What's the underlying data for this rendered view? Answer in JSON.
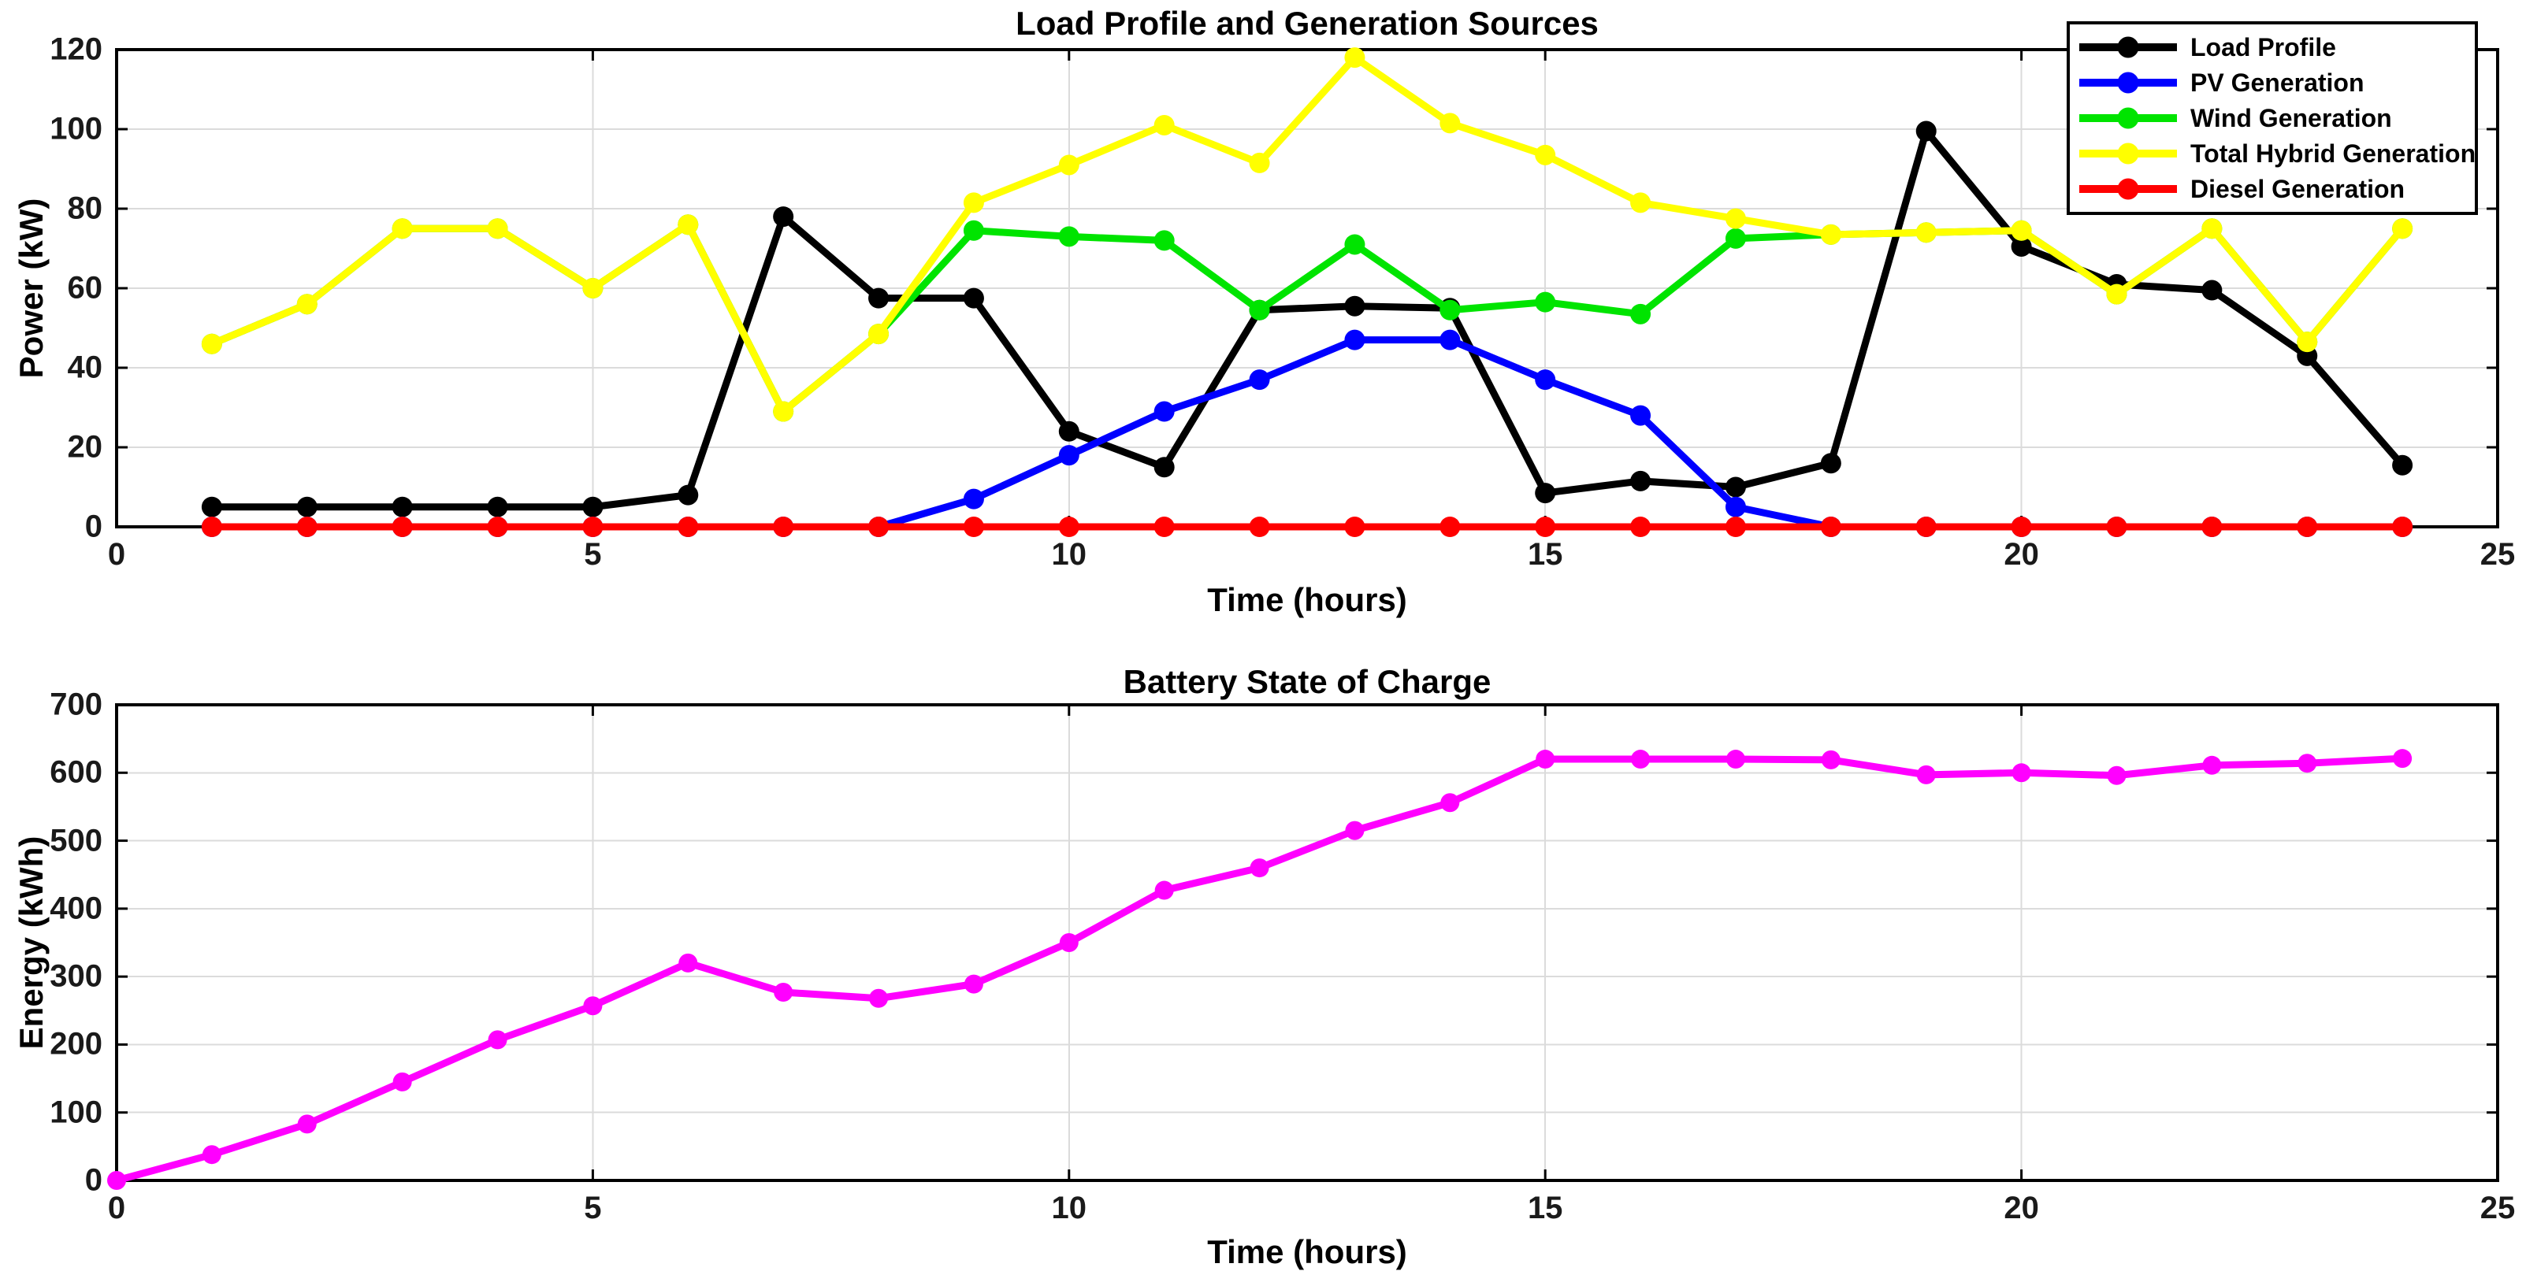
{
  "figure": {
    "background": "#FFFFFF",
    "grid_color": "#DBDBDB",
    "axis_color": "#000000"
  },
  "chart_data": [
    {
      "type": "line",
      "title": "Load Profile and Generation Sources",
      "xlabel": "Time (hours)",
      "ylabel": "Power (kW)",
      "xlim": [
        0,
        25
      ],
      "ylim": [
        0,
        120
      ],
      "xticks": [
        0,
        5,
        10,
        15,
        20,
        25
      ],
      "yticks": [
        0,
        20,
        40,
        60,
        80,
        100,
        120
      ],
      "grid": true,
      "legend_position": "top-right",
      "x": [
        1,
        2,
        3,
        4,
        5,
        6,
        7,
        8,
        9,
        10,
        11,
        12,
        13,
        14,
        15,
        16,
        17,
        18,
        19,
        20,
        21,
        22,
        23,
        24
      ],
      "series": [
        {
          "name": "Load Profile",
          "color": "#000000",
          "marker": "circle",
          "values": [
            5,
            5,
            5,
            5,
            5,
            8,
            78,
            57.5,
            57.5,
            24,
            15,
            54.5,
            55.5,
            55,
            8.5,
            11.5,
            10,
            16,
            99.5,
            70.5,
            61,
            59.5,
            43,
            15.5
          ]
        },
        {
          "name": "PV Generation",
          "color": "#0000FF",
          "marker": "circle",
          "values": [
            0,
            0,
            0,
            0,
            0,
            0,
            0,
            0,
            7,
            18,
            29,
            37,
            47,
            47,
            37,
            28,
            5,
            0,
            0,
            0,
            0,
            0,
            0,
            0
          ]
        },
        {
          "name": "Wind Generation",
          "color": "#00E400",
          "marker": "circle",
          "values": [
            46,
            56,
            75,
            75,
            60,
            76,
            29,
            48.5,
            74.5,
            73,
            72,
            54.5,
            71,
            54.5,
            56.5,
            53.5,
            72.5,
            73.5,
            74,
            74.5,
            58.5,
            75,
            46.5,
            75
          ]
        },
        {
          "name": "Total Hybrid Generation",
          "color": "#FFFF00",
          "marker": "circle",
          "values": [
            46,
            56,
            75,
            75,
            60,
            76,
            29,
            48.5,
            81.5,
            91,
            101,
            91.5,
            118,
            101.5,
            93.5,
            81.5,
            77.5,
            73.5,
            74,
            74.5,
            58.5,
            75,
            46.5,
            75
          ]
        },
        {
          "name": "Diesel Generation",
          "color": "#FF0000",
          "marker": "circle",
          "values": [
            0,
            0,
            0,
            0,
            0,
            0,
            0,
            0,
            0,
            0,
            0,
            0,
            0,
            0,
            0,
            0,
            0,
            0,
            0,
            0,
            0,
            0,
            0,
            0
          ]
        }
      ]
    },
    {
      "type": "line",
      "title": "Battery State of Charge",
      "xlabel": "Time (hours)",
      "ylabel": "Energy (kWh)",
      "xlim": [
        0,
        25
      ],
      "ylim": [
        0,
        700
      ],
      "xticks": [
        0,
        5,
        10,
        15,
        20,
        25
      ],
      "yticks": [
        0,
        100,
        200,
        300,
        400,
        500,
        600,
        700
      ],
      "grid": true,
      "legend_position": "none",
      "x": [
        0,
        1,
        2,
        3,
        4,
        5,
        6,
        7,
        8,
        9,
        10,
        11,
        12,
        13,
        14,
        15,
        16,
        17,
        18,
        19,
        20,
        21,
        22,
        23,
        24
      ],
      "series": [
        {
          "name": "Battery State of Charge",
          "color": "#FF00FF",
          "marker": "circle",
          "values": [
            0,
            38,
            83,
            145,
            207,
            257,
            320,
            277,
            268,
            289,
            350,
            427,
            460,
            515,
            556,
            620,
            620,
            620,
            619,
            597,
            600,
            596,
            611,
            614,
            621
          ]
        }
      ]
    }
  ]
}
